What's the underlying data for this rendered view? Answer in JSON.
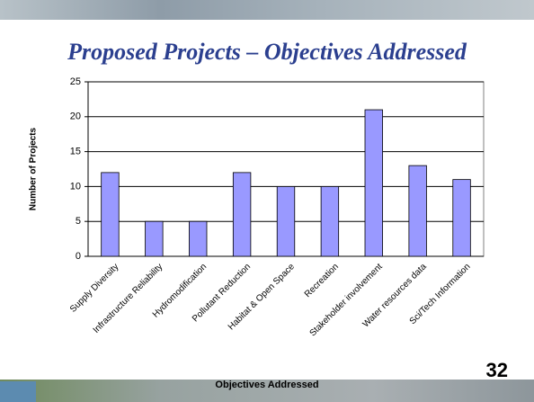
{
  "chart_data": {
    "type": "bar",
    "title": "Proposed Projects – Objectives Addressed",
    "categories": [
      "Supply Diversity",
      "Infrastructure Reliability",
      "Hydromodification",
      "Pollutant Reduction",
      "Habitat & Open Space",
      "Recreation",
      "Stakeholder involvement",
      "Water resources data",
      "Sci/Tech Information"
    ],
    "values": [
      12,
      5,
      5,
      12,
      10,
      10,
      21,
      13,
      11
    ],
    "color": "#9999ff",
    "ylim": [
      0,
      25
    ],
    "yticks": [
      0,
      5,
      10,
      15,
      20,
      25
    ],
    "grid": true,
    "y_label": "Number of Projects",
    "x_label": "Objectives Addressed",
    "page_number": "32"
  }
}
